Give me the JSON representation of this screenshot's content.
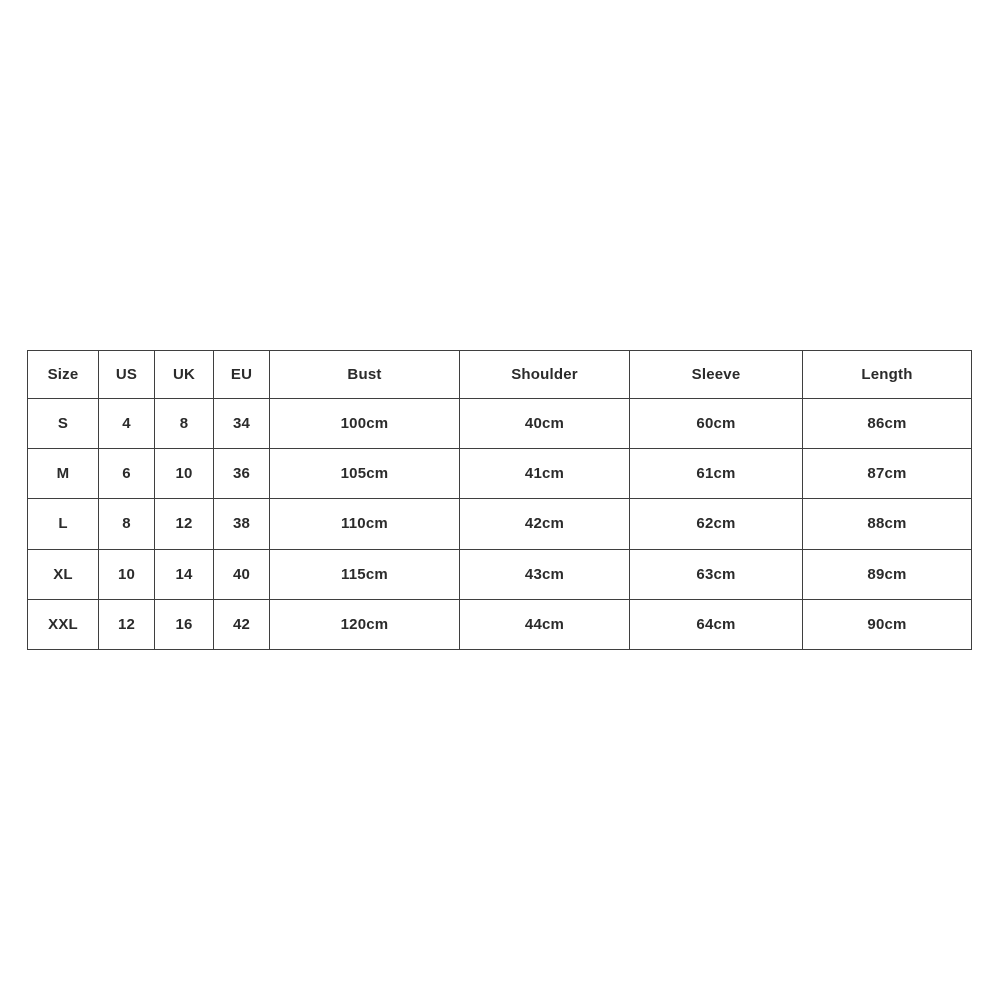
{
  "size_chart": {
    "headers": [
      "Size",
      "US",
      "UK",
      "EU",
      "Bust",
      "Shoulder",
      "Sleeve",
      "Length"
    ],
    "rows": [
      [
        "S",
        "4",
        "8",
        "34",
        "100cm",
        "40cm",
        "60cm",
        "86cm"
      ],
      [
        "M",
        "6",
        "10",
        "36",
        "105cm",
        "41cm",
        "61cm",
        "87cm"
      ],
      [
        "L",
        "8",
        "12",
        "38",
        "110cm",
        "42cm",
        "62cm",
        "88cm"
      ],
      [
        "XL",
        "10",
        "14",
        "40",
        "115cm",
        "43cm",
        "63cm",
        "89cm"
      ],
      [
        "XXL",
        "12",
        "16",
        "42",
        "120cm",
        "44cm",
        "64cm",
        "90cm"
      ]
    ],
    "colors": {
      "background": "#ffffff",
      "border": "#3f3f3f",
      "text": "#2b2b2b"
    }
  }
}
